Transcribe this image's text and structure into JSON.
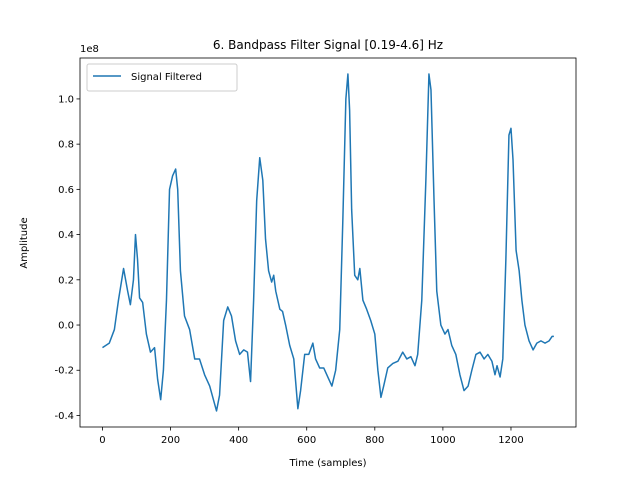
{
  "chart_data": {
    "type": "line",
    "title": "6. Bandpass Filter Signal [0.19-4.6] Hz",
    "xlabel": "Time (samples)",
    "ylabel": "Amplitude",
    "y_offset_label": "1e8",
    "legend": "upper left",
    "grid": false,
    "xlim": [
      -66,
      1391
    ],
    "ylim": [
      -0.451,
      1.181
    ],
    "xticks": [
      0,
      200,
      400,
      600,
      800,
      1000,
      1200
    ],
    "yticks": [
      -0.4,
      -0.2,
      {
        "value": 0,
        "label": "0.0"
      },
      0.2,
      0.4,
      0.6,
      0.8,
      {
        "value": 1,
        "label": "1.0"
      }
    ],
    "x": [
      0,
      20,
      35,
      47,
      62,
      74,
      82,
      91,
      97,
      103,
      109,
      118,
      129,
      141,
      153,
      162,
      171,
      179,
      188,
      197,
      206,
      215,
      221,
      229,
      241,
      256,
      271,
      285,
      300,
      315,
      335,
      344,
      356,
      368,
      379,
      391,
      403,
      415,
      426,
      435,
      444,
      453,
      462,
      471,
      479,
      488,
      497,
      503,
      509,
      521,
      529,
      538,
      550,
      562,
      574,
      582,
      594,
      606,
      618,
      626,
      638,
      650,
      662,
      674,
      685,
      697,
      706,
      715,
      721,
      726,
      732,
      741,
      750,
      756,
      765,
      776,
      788,
      800,
      809,
      818,
      826,
      838,
      853,
      868,
      882,
      894,
      906,
      918,
      926,
      938,
      950,
      959,
      965,
      974,
      982,
      994,
      1006,
      1015,
      1026,
      1038,
      1050,
      1062,
      1074,
      1085,
      1097,
      1109,
      1121,
      1132,
      1144,
      1153,
      1159,
      1168,
      1176,
      1185,
      1194,
      1200,
      1206,
      1215,
      1224,
      1232,
      1241,
      1253,
      1265,
      1276,
      1288,
      1300,
      1312,
      1321,
      1326
    ],
    "series": [
      {
        "name": "Signal Filtered",
        "color": "#1f77b4",
        "values": [
          -0.1,
          -0.08,
          -0.02,
          0.11,
          0.25,
          0.15,
          0.09,
          0.2,
          0.4,
          0.29,
          0.12,
          0.1,
          -0.04,
          -0.12,
          -0.1,
          -0.24,
          -0.33,
          -0.2,
          0.11,
          0.6,
          0.66,
          0.69,
          0.6,
          0.24,
          0.04,
          -0.02,
          -0.15,
          -0.15,
          -0.22,
          -0.27,
          -0.38,
          -0.31,
          0.02,
          0.08,
          0.04,
          -0.07,
          -0.13,
          -0.11,
          -0.12,
          -0.25,
          0.11,
          0.55,
          0.74,
          0.64,
          0.38,
          0.24,
          0.19,
          0.22,
          0.15,
          0.07,
          0.06,
          0.0,
          -0.09,
          -0.15,
          -0.37,
          -0.29,
          -0.13,
          -0.13,
          -0.08,
          -0.15,
          -0.19,
          -0.19,
          -0.23,
          -0.27,
          -0.2,
          -0.02,
          0.46,
          1.0,
          1.11,
          0.95,
          0.51,
          0.22,
          0.2,
          0.25,
          0.11,
          0.07,
          0.02,
          -0.04,
          -0.2,
          -0.32,
          -0.27,
          -0.19,
          -0.17,
          -0.16,
          -0.12,
          -0.15,
          -0.14,
          -0.18,
          -0.13,
          0.11,
          0.64,
          1.11,
          1.04,
          0.55,
          0.15,
          0.0,
          -0.04,
          -0.02,
          -0.09,
          -0.13,
          -0.22,
          -0.29,
          -0.27,
          -0.2,
          -0.13,
          -0.12,
          -0.15,
          -0.13,
          -0.16,
          -0.22,
          -0.18,
          -0.23,
          -0.15,
          0.29,
          0.84,
          0.87,
          0.73,
          0.33,
          0.24,
          0.11,
          0.0,
          -0.07,
          -0.11,
          -0.08,
          -0.07,
          -0.08,
          -0.07,
          -0.05,
          -0.05
        ]
      }
    ]
  }
}
